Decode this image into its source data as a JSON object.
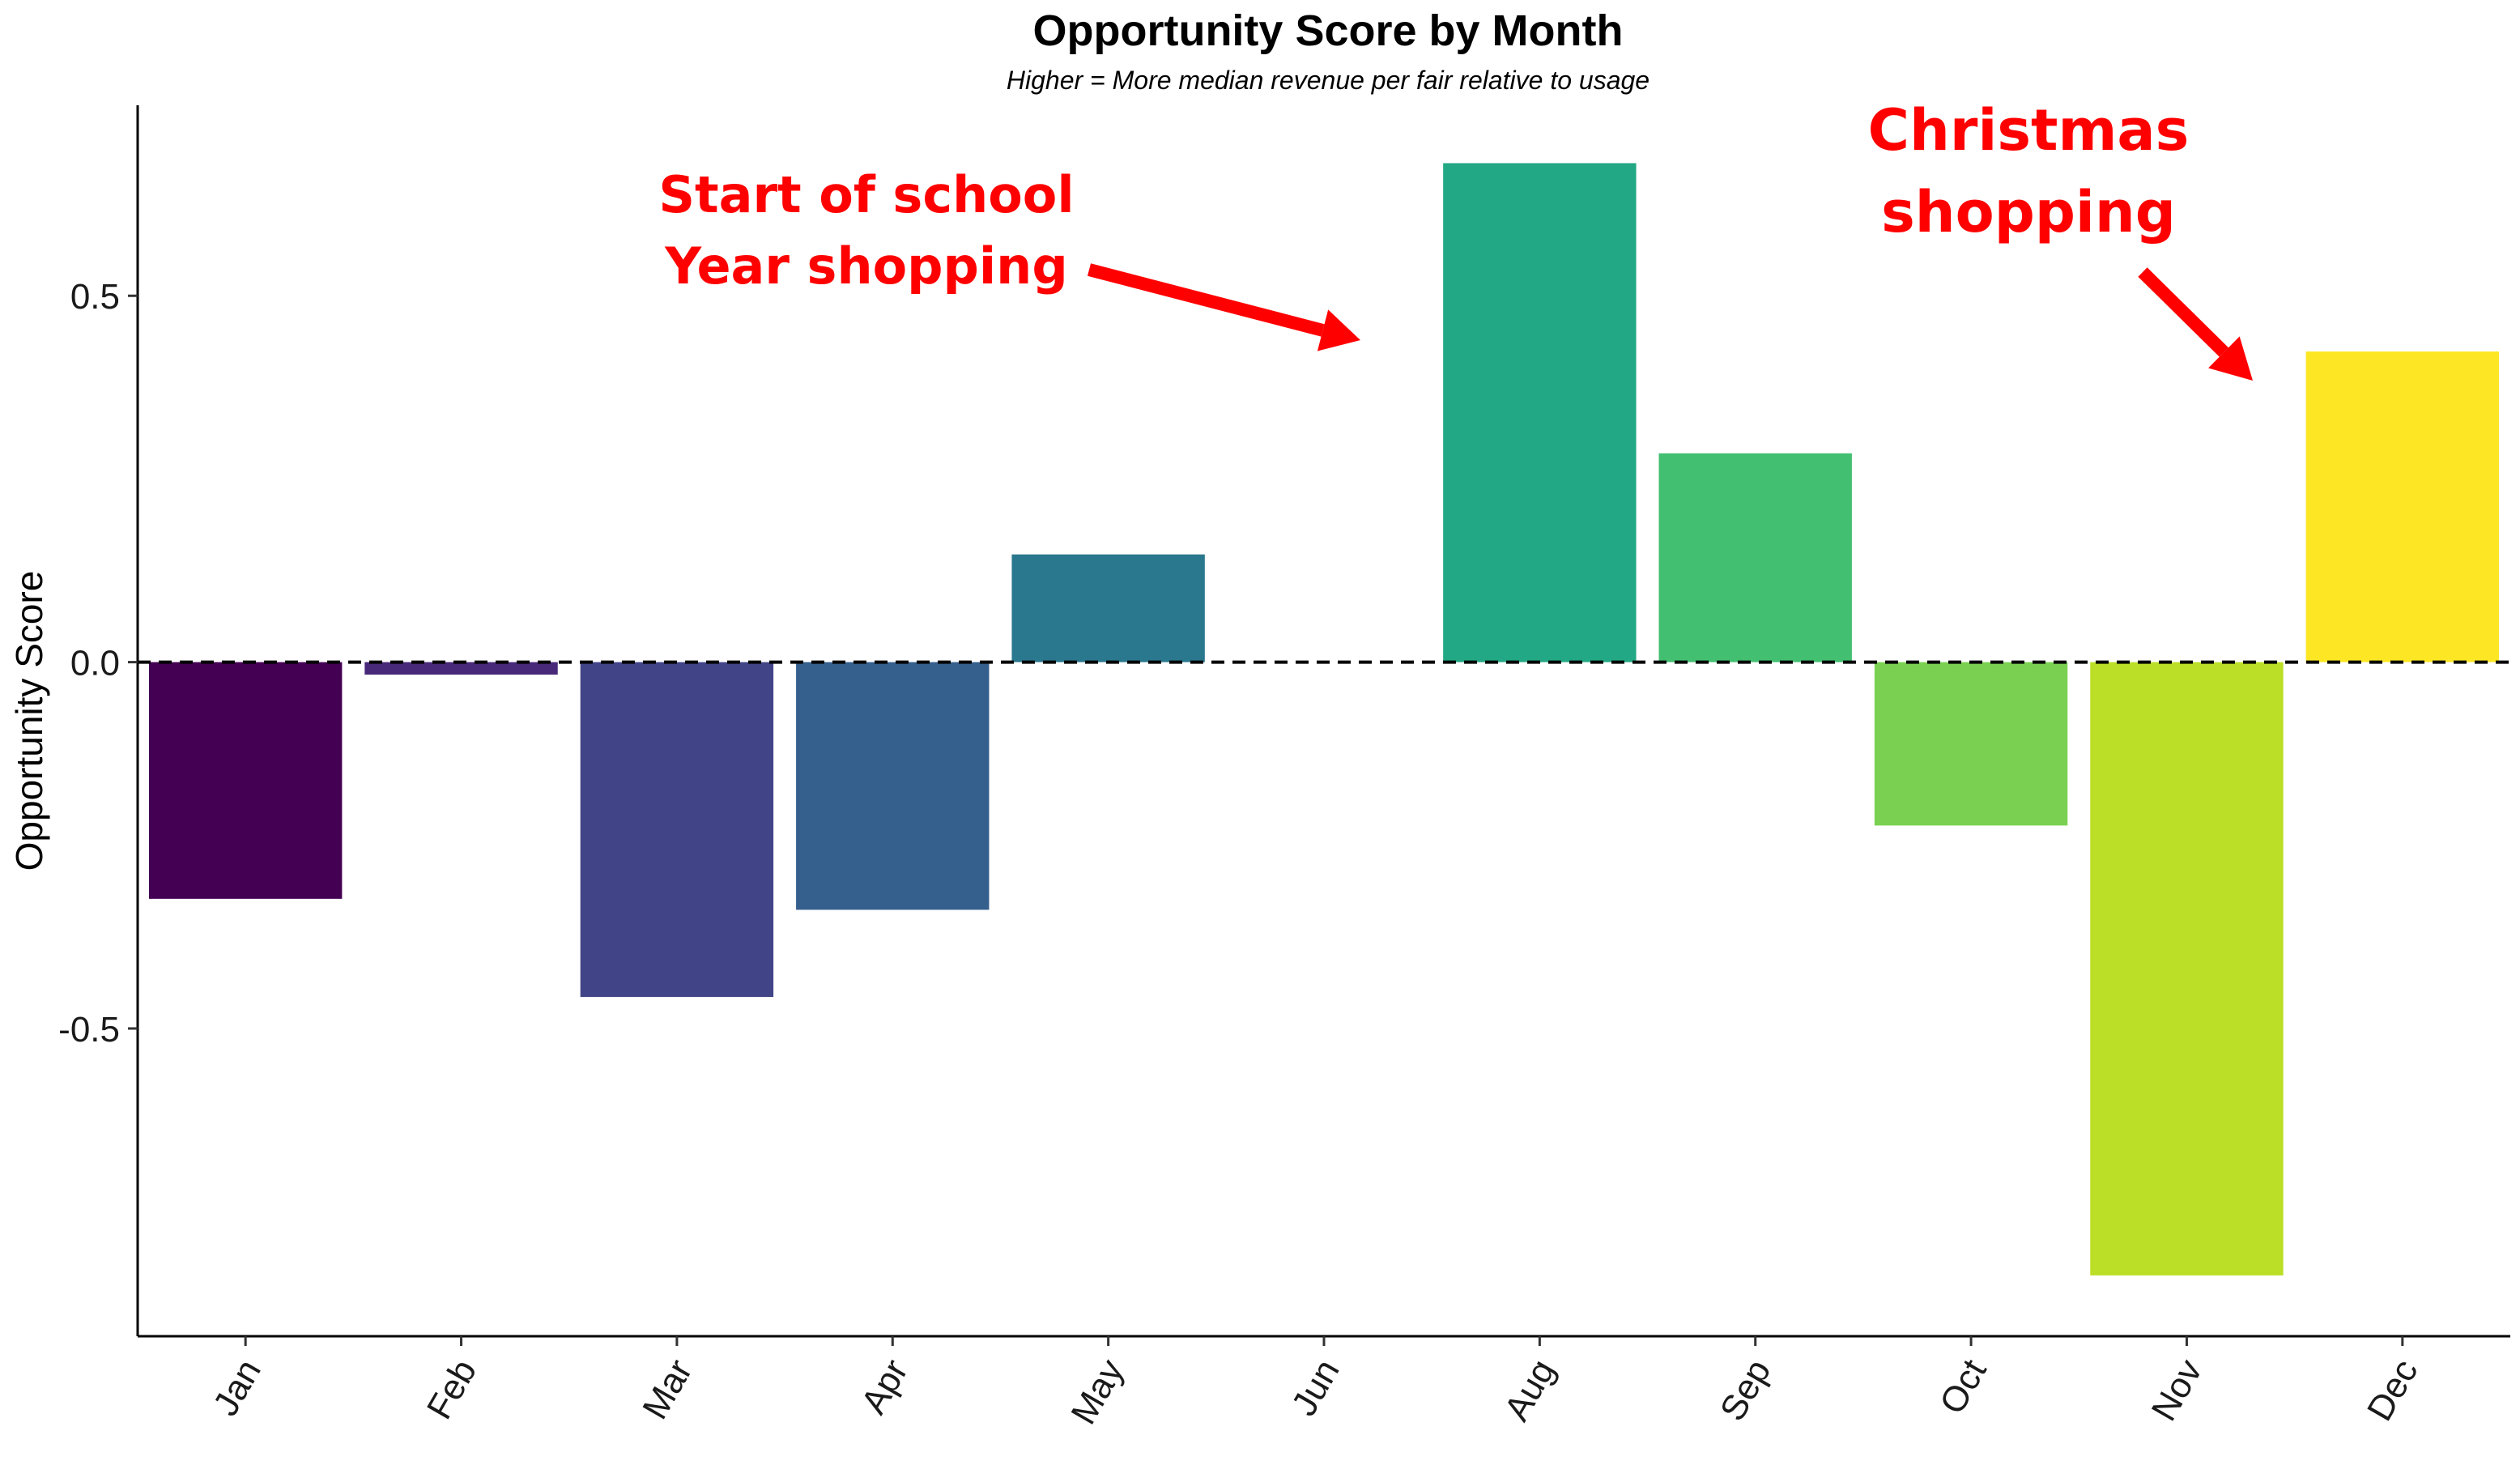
{
  "chart_data": {
    "type": "bar",
    "title": "Opportunity Score by Month",
    "subtitle": "Higher = More median revenue per fair relative to usage",
    "xlabel": "",
    "ylabel": "Opportunity Score",
    "categories": [
      "Jan",
      "Feb",
      "Mar",
      "Apr",
      "May",
      "Jun",
      "Aug",
      "Sep",
      "Oct",
      "Nov",
      "Dec"
    ],
    "values": [
      -0.323,
      -0.017,
      -0.457,
      -0.338,
      0.147,
      null,
      0.681,
      0.285,
      -0.223,
      -0.837,
      0.424
    ],
    "colors": [
      "#440154",
      "#482878",
      "#414487",
      "#355F8D",
      "#2A788E",
      "#21918C",
      "#22A884",
      "#43BF71",
      "#7AD151",
      "#BBDF27",
      "#FDE725"
    ],
    "ylim": [
      -0.92,
      0.76
    ],
    "yticks": [
      {
        "value": 0.5,
        "label": "0.5"
      },
      {
        "value": 0.0,
        "label": "0.0"
      },
      {
        "value": -0.5,
        "label": "-0.5"
      }
    ],
    "reference_line": {
      "value": 0,
      "style": "dashed",
      "color": "#000000"
    },
    "grid": false,
    "legend": "none",
    "annotations": [
      {
        "lines": [
          "Start of school",
          "Year shopping"
        ],
        "color": "#FF0000",
        "points_to": "Aug"
      },
      {
        "lines": [
          "Christmas",
          "shopping"
        ],
        "color": "#FF0000",
        "points_to": "Dec"
      }
    ]
  }
}
